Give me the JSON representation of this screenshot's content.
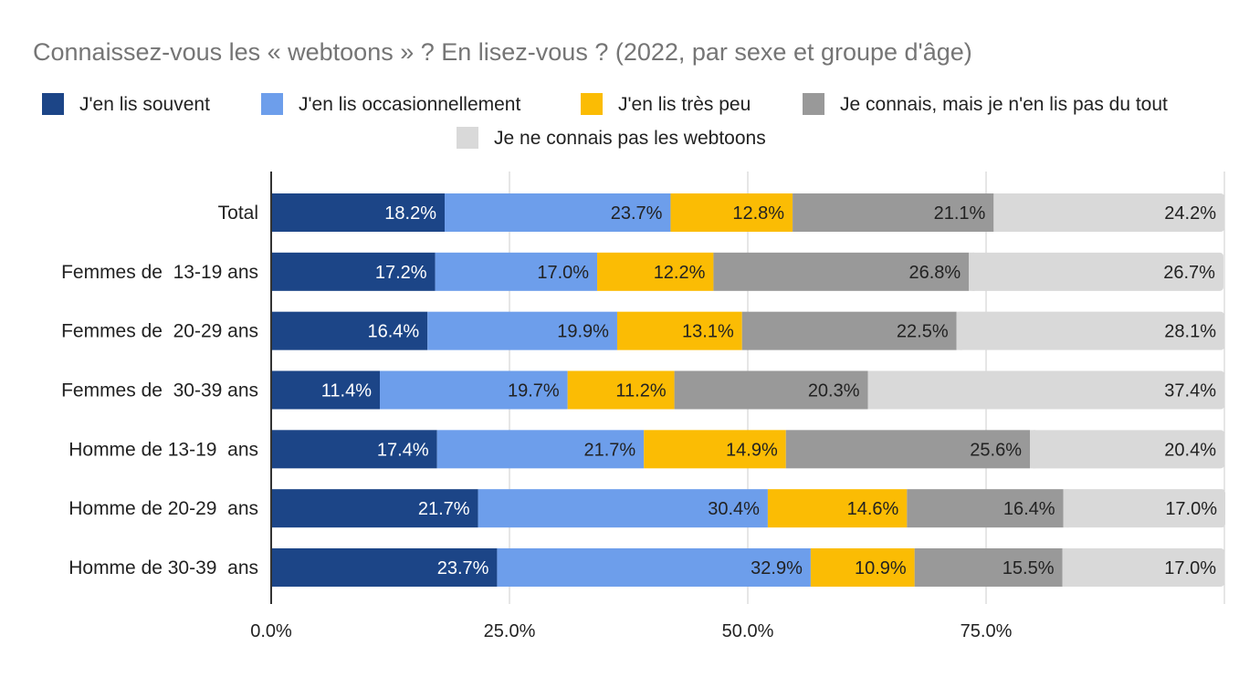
{
  "chart_data": {
    "type": "bar",
    "orientation": "horizontal",
    "stacked": true,
    "title": "Connaissez-vous les « webtoons » ? En lisez-vous ? (2022, par sexe et groupe d'âge)",
    "xlabel": "",
    "ylabel": "",
    "xlim": [
      0,
      100
    ],
    "x_ticks": [
      "0.0%",
      "25.0%",
      "50.0%",
      "75.0%"
    ],
    "x_tick_values": [
      0,
      25,
      50,
      75
    ],
    "grid": true,
    "legend_position": "top",
    "categories": [
      "Total",
      "Femmes de  13-19 ans",
      "Femmes de  20-29 ans",
      "Femmes de  30-39 ans",
      "Homme de 13-19  ans",
      "Homme de 20-29  ans",
      "Homme de 30-39  ans"
    ],
    "series": [
      {
        "name": "J'en lis souvent",
        "color": "#1c4587",
        "label_color": "#ffffff",
        "values": [
          18.2,
          17.2,
          16.4,
          11.4,
          17.4,
          21.7,
          23.7
        ],
        "labels": [
          "18.2%",
          "17.2%",
          "16.4%",
          "11.4%",
          "17.4%",
          "21.7%",
          "23.7%"
        ]
      },
      {
        "name": "J'en lis occasionnellement",
        "color": "#6d9eeb",
        "label_color": "#222222",
        "values": [
          23.7,
          17.0,
          19.9,
          19.7,
          21.7,
          30.4,
          32.9
        ],
        "labels": [
          "23.7%",
          "17.0%",
          "19.9%",
          "19.7%",
          "21.7%",
          "30.4%",
          "32.9%"
        ]
      },
      {
        "name": "J'en lis très peu",
        "color": "#fbbc04",
        "label_color": "#222222",
        "values": [
          12.8,
          12.2,
          13.1,
          11.2,
          14.9,
          14.6,
          10.9
        ],
        "labels": [
          "12.8%",
          "12.2%",
          "13.1%",
          "11.2%",
          "14.9%",
          "14.6%",
          "10.9%"
        ]
      },
      {
        "name": "Je connais, mais je n'en lis pas du tout",
        "color": "#999999",
        "label_color": "#222222",
        "values": [
          21.1,
          26.8,
          22.5,
          20.3,
          25.6,
          16.4,
          15.5
        ],
        "labels": [
          "21.1%",
          "26.8%",
          "22.5%",
          "20.3%",
          "25.6%",
          "16.4%",
          "15.5%"
        ]
      },
      {
        "name": "Je ne connais pas les webtoons",
        "color": "#d9d9d9",
        "label_color": "#222222",
        "values": [
          24.2,
          26.7,
          28.1,
          37.4,
          20.4,
          17.0,
          17.0
        ],
        "labels": [
          "24.2%",
          "26.7%",
          "28.1%",
          "37.4%",
          "20.4%",
          "17.0%",
          "17.0%"
        ]
      }
    ]
  }
}
